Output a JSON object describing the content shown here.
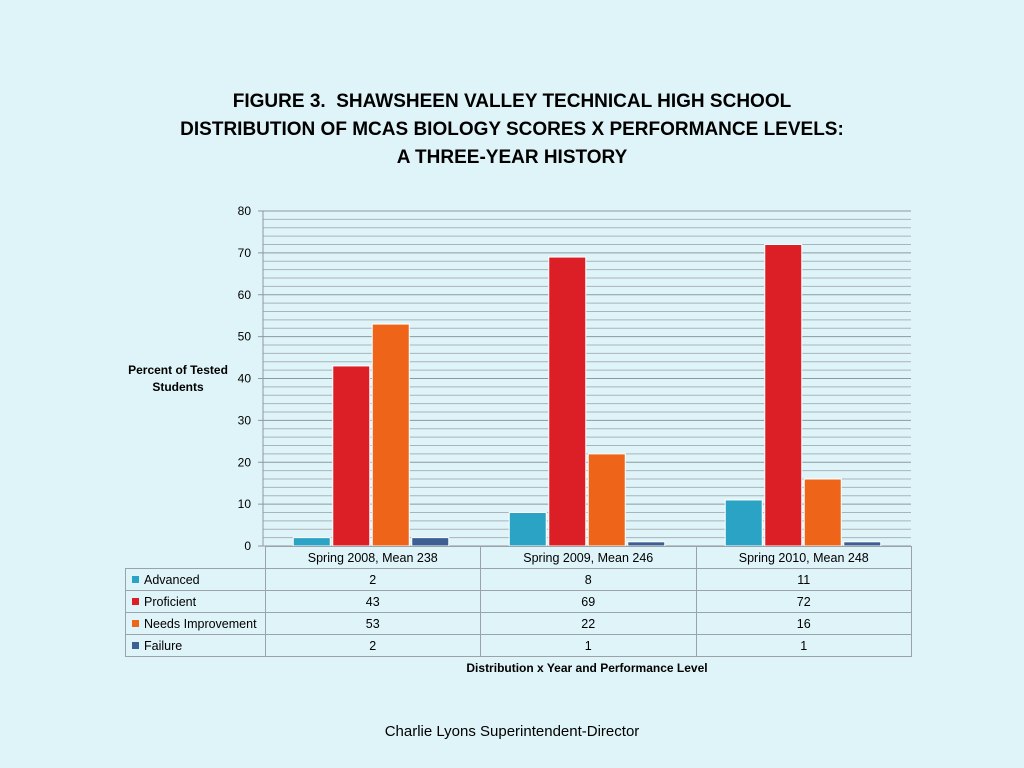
{
  "title_lines": [
    "FIGURE 3.  SHAWSHEEN VALLEY TECHNICAL HIGH SCHOOL",
    "DISTRIBUTION OF MCAS BIOLOGY SCORES X PERFORMANCE LEVELS:",
    "A THREE-YEAR HISTORY"
  ],
  "footer": "Charlie Lyons Superintendent-Director",
  "chart_data": {
    "type": "bar",
    "title": "FIGURE 3.  SHAWSHEEN VALLEY TECHNICAL HIGH SCHOOL DISTRIBUTION OF MCAS BIOLOGY SCORES X PERFORMANCE LEVELS: A THREE-YEAR HISTORY",
    "ylabel": "Percent of Tested Students",
    "xlabel": "Distribution x Year and Performance Level",
    "categories": [
      "Spring 2008, Mean 238",
      "Spring 2009, Mean 246",
      "Spring 2010, Mean 248"
    ],
    "series": [
      {
        "name": "Advanced",
        "color": "#2ba3c4",
        "values": [
          2,
          8,
          11
        ]
      },
      {
        "name": "Proficient",
        "color": "#dc1f26",
        "values": [
          43,
          69,
          72
        ]
      },
      {
        "name": "Needs Improvement",
        "color": "#ee6519",
        "values": [
          53,
          22,
          16
        ]
      },
      {
        "name": "Failure",
        "color": "#3d5f94",
        "values": [
          2,
          1,
          1
        ]
      }
    ],
    "ylim": [
      0,
      80
    ],
    "yticks": [
      0,
      10,
      20,
      30,
      40,
      50,
      60,
      70,
      80
    ],
    "grid": true,
    "legend": "data-table-below"
  }
}
